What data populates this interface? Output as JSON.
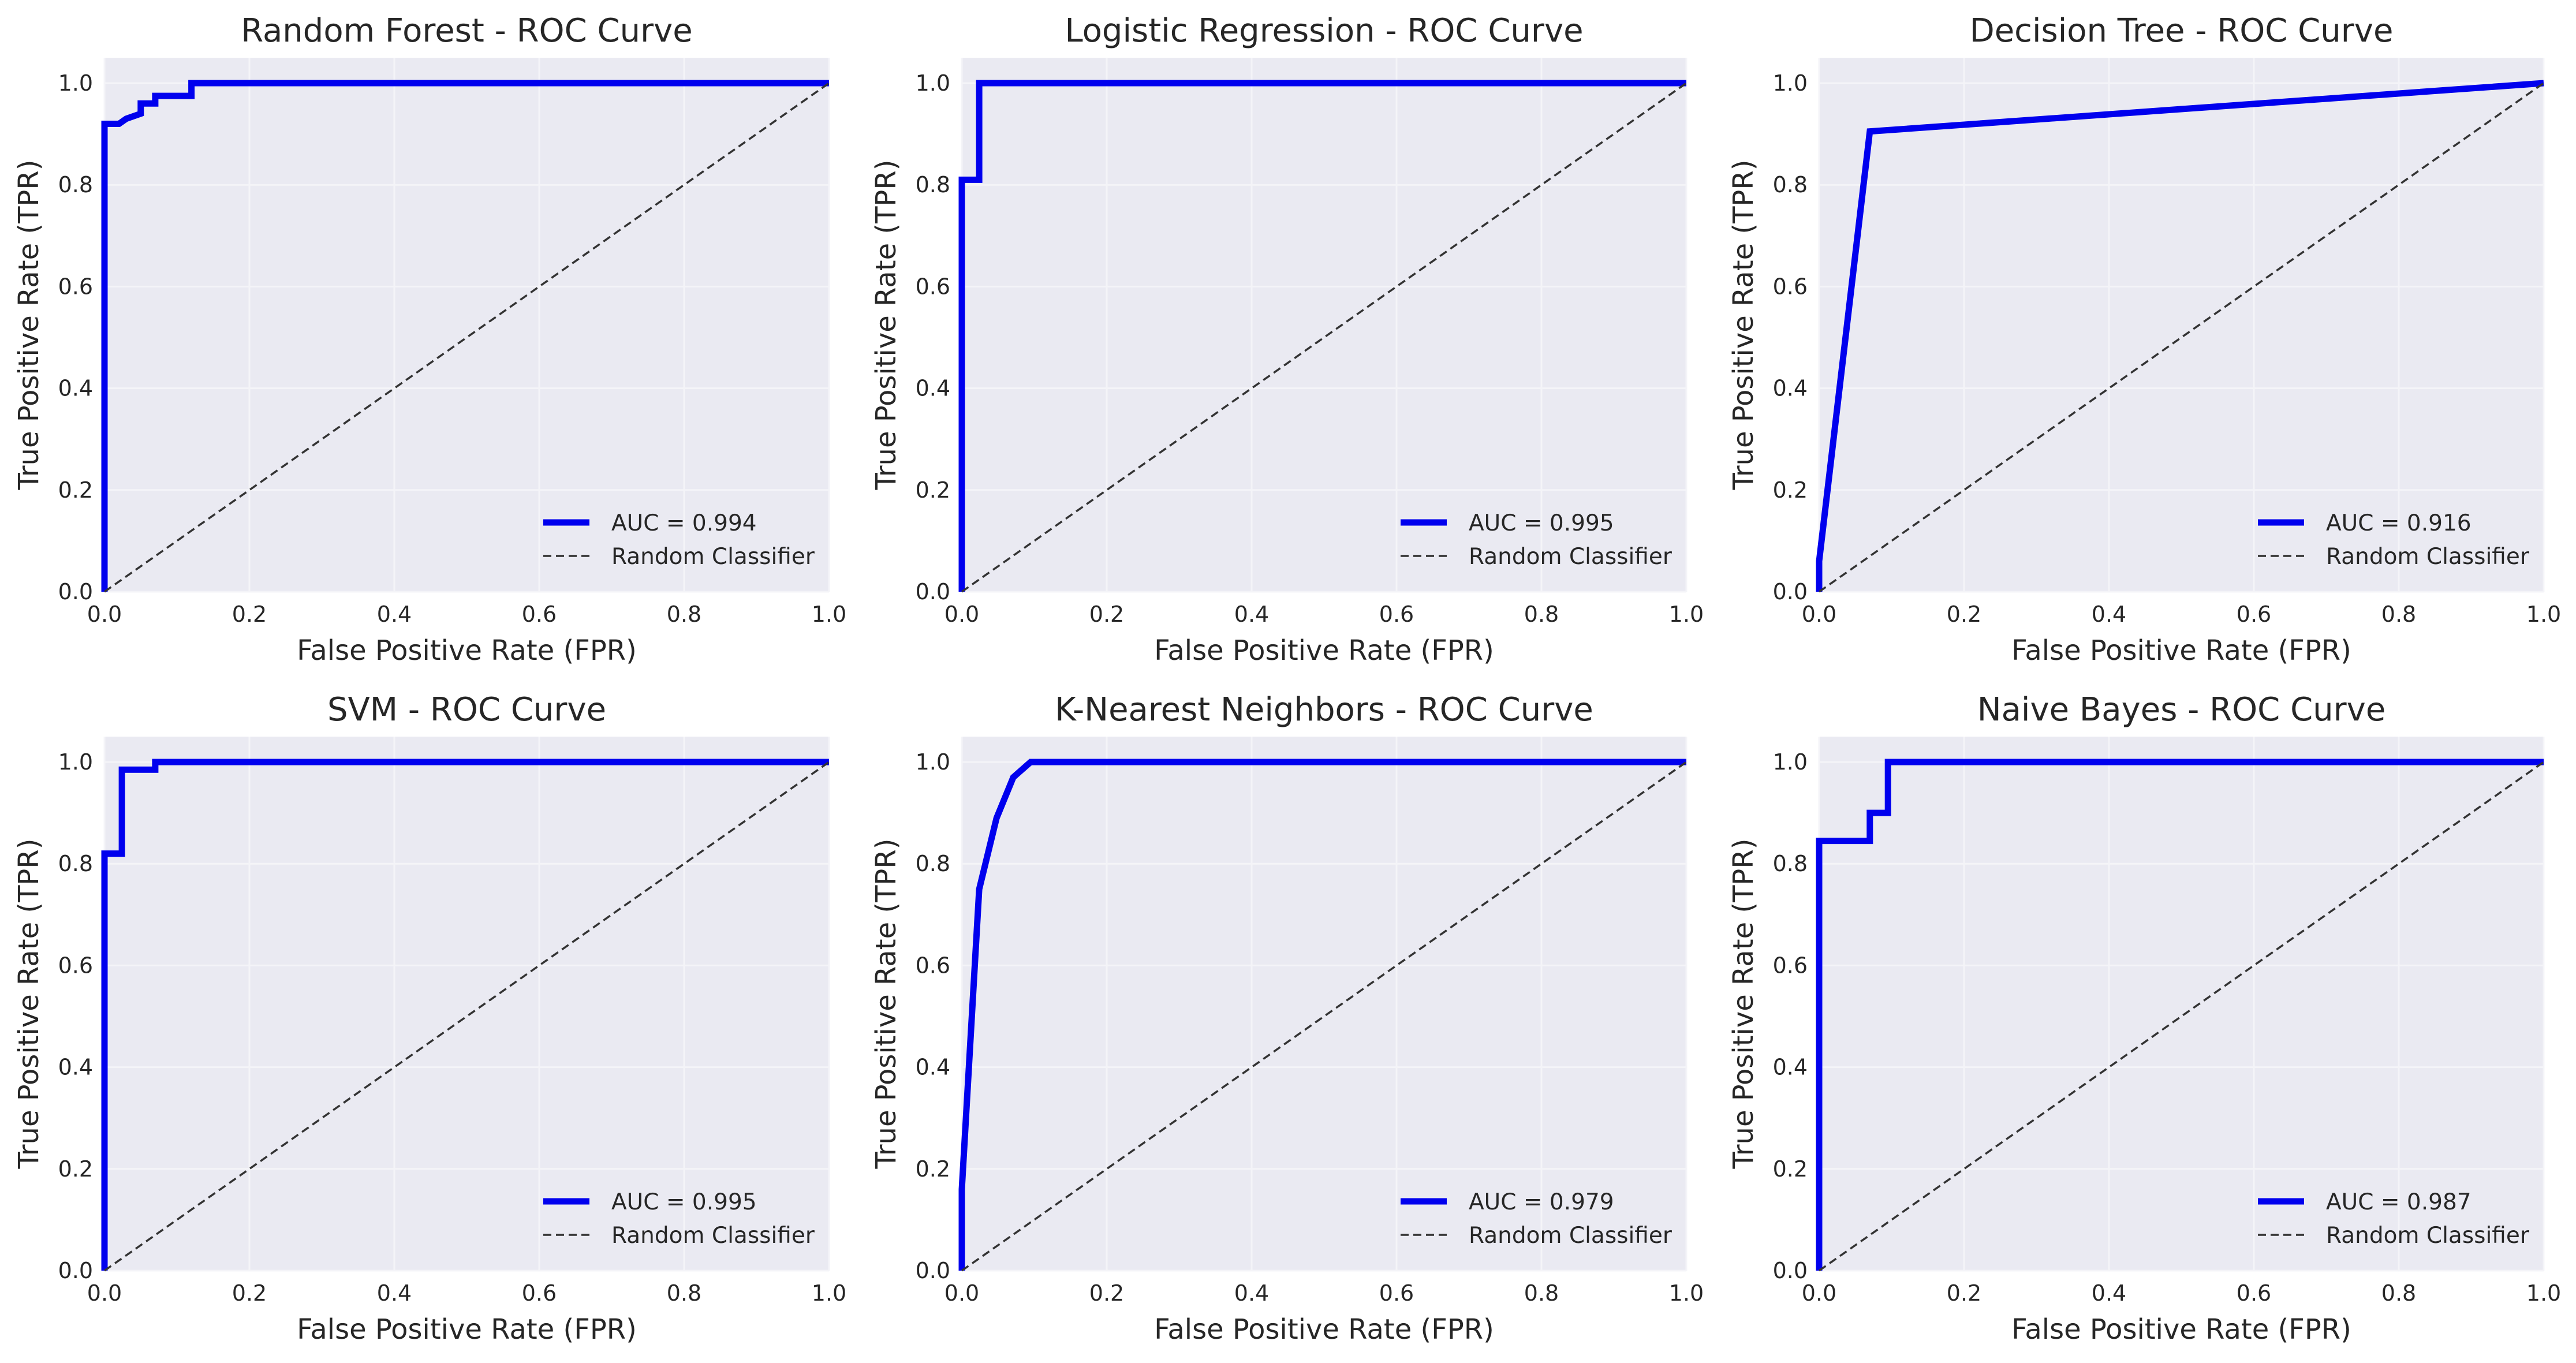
{
  "figure": {
    "background": "#ffffff",
    "plot_background": "#eaeaf2",
    "grid_color": "#f4f4f8",
    "text_color": "#262626",
    "roc_color": "#0000ee",
    "diagonal_color": "#333333"
  },
  "chart_data": [
    {
      "type": "line",
      "title": "Random Forest - ROC Curve",
      "xlabel": "False Positive Rate (FPR)",
      "ylabel": "True Positive Rate (TPR)",
      "xlim": [
        0.0,
        1.0
      ],
      "ylim": [
        0.0,
        1.05
      ],
      "xticks": [
        "0.0",
        "0.2",
        "0.4",
        "0.6",
        "0.8",
        "1.0"
      ],
      "yticks": [
        "0.0",
        "0.2",
        "0.4",
        "0.6",
        "0.8",
        "1.0"
      ],
      "grid": true,
      "legend_position": "lower-right",
      "series": [
        {
          "name": "AUC = 0.994",
          "style": "solid",
          "x": [
            0,
            0,
            0.02,
            0.03,
            0.05,
            0.05,
            0.07,
            0.07,
            0.12,
            0.12,
            1.0
          ],
          "y": [
            0,
            0.92,
            0.92,
            0.93,
            0.94,
            0.96,
            0.96,
            0.975,
            0.975,
            1.0,
            1.0
          ]
        },
        {
          "name": "Random Classifier",
          "style": "dashed",
          "x": [
            0,
            1
          ],
          "y": [
            0,
            1
          ]
        }
      ]
    },
    {
      "type": "line",
      "title": "Logistic Regression - ROC Curve",
      "xlabel": "False Positive Rate (FPR)",
      "ylabel": "True Positive Rate (TPR)",
      "xlim": [
        0.0,
        1.0
      ],
      "ylim": [
        0.0,
        1.05
      ],
      "xticks": [
        "0.0",
        "0.2",
        "0.4",
        "0.6",
        "0.8",
        "1.0"
      ],
      "yticks": [
        "0.0",
        "0.2",
        "0.4",
        "0.6",
        "0.8",
        "1.0"
      ],
      "grid": true,
      "legend_position": "lower-right",
      "series": [
        {
          "name": "AUC = 0.995",
          "style": "solid",
          "x": [
            0,
            0,
            0.024,
            0.024,
            1.0
          ],
          "y": [
            0,
            0.81,
            0.81,
            1.0,
            1.0
          ]
        },
        {
          "name": "Random Classifier",
          "style": "dashed",
          "x": [
            0,
            1
          ],
          "y": [
            0,
            1
          ]
        }
      ]
    },
    {
      "type": "line",
      "title": "Decision Tree - ROC Curve",
      "xlabel": "False Positive Rate (FPR)",
      "ylabel": "True Positive Rate (TPR)",
      "xlim": [
        0.0,
        1.0
      ],
      "ylim": [
        0.0,
        1.05
      ],
      "xticks": [
        "0.0",
        "0.2",
        "0.4",
        "0.6",
        "0.8",
        "1.0"
      ],
      "yticks": [
        "0.0",
        "0.2",
        "0.4",
        "0.6",
        "0.8",
        "1.0"
      ],
      "grid": true,
      "legend_position": "lower-right",
      "series": [
        {
          "name": "AUC = 0.916",
          "style": "solid",
          "x": [
            0,
            0,
            0.07,
            1.0
          ],
          "y": [
            0,
            0.06,
            0.905,
            1.0
          ]
        },
        {
          "name": "Random Classifier",
          "style": "dashed",
          "x": [
            0,
            1
          ],
          "y": [
            0,
            1
          ]
        }
      ]
    },
    {
      "type": "line",
      "title": "SVM - ROC Curve",
      "xlabel": "False Positive Rate (FPR)",
      "ylabel": "True Positive Rate (TPR)",
      "xlim": [
        0.0,
        1.0
      ],
      "ylim": [
        0.0,
        1.05
      ],
      "xticks": [
        "0.0",
        "0.2",
        "0.4",
        "0.6",
        "0.8",
        "1.0"
      ],
      "yticks": [
        "0.0",
        "0.2",
        "0.4",
        "0.6",
        "0.8",
        "1.0"
      ],
      "grid": true,
      "legend_position": "lower-right",
      "series": [
        {
          "name": "AUC = 0.995",
          "style": "solid",
          "x": [
            0,
            0,
            0.024,
            0.024,
            0.07,
            0.07,
            1.0
          ],
          "y": [
            0,
            0.82,
            0.82,
            0.985,
            0.985,
            1.0,
            1.0
          ]
        },
        {
          "name": "Random Classifier",
          "style": "dashed",
          "x": [
            0,
            1
          ],
          "y": [
            0,
            1
          ]
        }
      ]
    },
    {
      "type": "line",
      "title": "K-Nearest Neighbors - ROC Curve",
      "xlabel": "False Positive Rate (FPR)",
      "ylabel": "True Positive Rate (TPR)",
      "xlim": [
        0.0,
        1.0
      ],
      "ylim": [
        0.0,
        1.05
      ],
      "xticks": [
        "0.0",
        "0.2",
        "0.4",
        "0.6",
        "0.8",
        "1.0"
      ],
      "yticks": [
        "0.0",
        "0.2",
        "0.4",
        "0.6",
        "0.8",
        "1.0"
      ],
      "grid": true,
      "legend_position": "lower-right",
      "series": [
        {
          "name": "AUC = 0.979",
          "style": "solid",
          "x": [
            0,
            0,
            0.024,
            0.048,
            0.071,
            0.095,
            1.0
          ],
          "y": [
            0,
            0.16,
            0.75,
            0.89,
            0.97,
            1.0,
            1.0
          ]
        },
        {
          "name": "Random Classifier",
          "style": "dashed",
          "x": [
            0,
            1
          ],
          "y": [
            0,
            1
          ]
        }
      ]
    },
    {
      "type": "line",
      "title": "Naive Bayes - ROC Curve",
      "xlabel": "False Positive Rate (FPR)",
      "ylabel": "True Positive Rate (TPR)",
      "xlim": [
        0.0,
        1.0
      ],
      "ylim": [
        0.0,
        1.05
      ],
      "xticks": [
        "0.0",
        "0.2",
        "0.4",
        "0.6",
        "0.8",
        "1.0"
      ],
      "yticks": [
        "0.0",
        "0.2",
        "0.4",
        "0.6",
        "0.8",
        "1.0"
      ],
      "grid": true,
      "legend_position": "lower-right",
      "series": [
        {
          "name": "AUC = 0.987",
          "style": "solid",
          "x": [
            0,
            0,
            0.07,
            0.07,
            0.095,
            0.095,
            1.0
          ],
          "y": [
            0,
            0.845,
            0.845,
            0.9,
            0.9,
            1.0,
            1.0
          ]
        },
        {
          "name": "Random Classifier",
          "style": "dashed",
          "x": [
            0,
            1
          ],
          "y": [
            0,
            1
          ]
        }
      ]
    }
  ]
}
